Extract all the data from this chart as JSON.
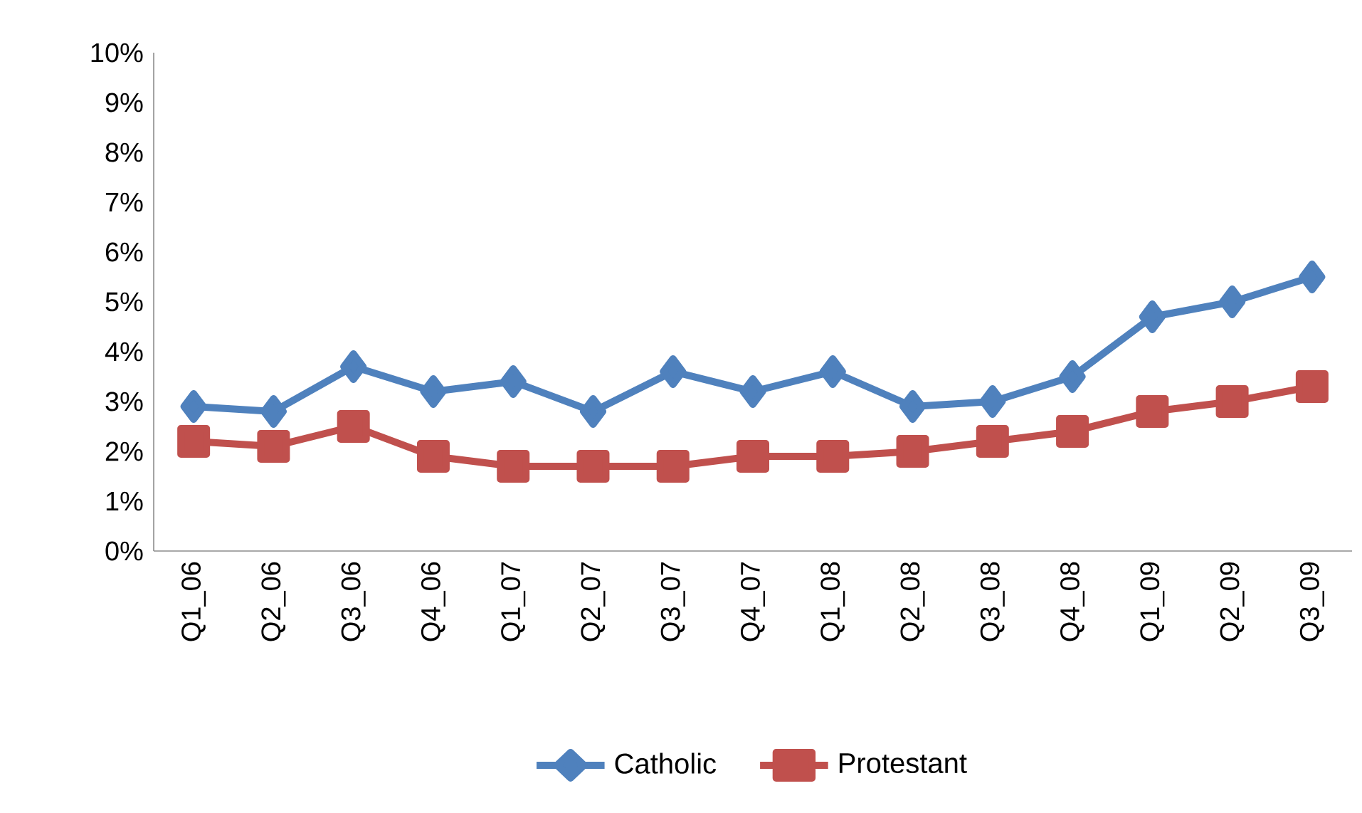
{
  "chart_data": {
    "type": "line",
    "categories": [
      "Q1_06",
      "Q2_06",
      "Q3_06",
      "Q4_06",
      "Q1_07",
      "Q2_07",
      "Q3_07",
      "Q4_07",
      "Q1_08",
      "Q2_08",
      "Q3_08",
      "Q4_08",
      "Q1_09",
      "Q2_09",
      "Q3_09"
    ],
    "series": [
      {
        "name": "Catholic",
        "color": "#4f81bd",
        "marker": "diamond",
        "values": [
          2.9,
          2.8,
          3.7,
          3.2,
          3.4,
          2.8,
          3.6,
          3.2,
          3.6,
          2.9,
          3.0,
          3.5,
          4.7,
          5.0,
          5.5
        ]
      },
      {
        "name": "Protestant",
        "color": "#c0504d",
        "marker": "square",
        "values": [
          2.2,
          2.1,
          2.5,
          1.9,
          1.7,
          1.7,
          1.7,
          1.9,
          1.9,
          2.0,
          2.2,
          2.4,
          2.8,
          3.0,
          3.3
        ]
      }
    ],
    "ylim": [
      0,
      10
    ],
    "yticks": [
      {
        "value": 0,
        "label": "0%"
      },
      {
        "value": 1,
        "label": "1%"
      },
      {
        "value": 2,
        "label": "2%"
      },
      {
        "value": 3,
        "label": "3%"
      },
      {
        "value": 4,
        "label": "4%"
      },
      {
        "value": 5,
        "label": "5%"
      },
      {
        "value": 6,
        "label": "6%"
      },
      {
        "value": 7,
        "label": "7%"
      },
      {
        "value": 8,
        "label": "8%"
      },
      {
        "value": 9,
        "label": "9%"
      },
      {
        "value": 10,
        "label": "10%"
      }
    ],
    "grid": false,
    "legend": "bottom",
    "line_style": "solid"
  }
}
